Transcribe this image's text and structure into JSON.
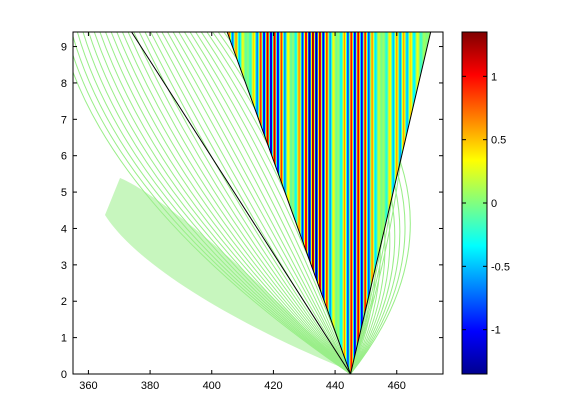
{
  "chart_data": {
    "type": "heatmap",
    "title": "",
    "xlabel": "",
    "ylabel": "",
    "xlim": [
      355,
      475
    ],
    "ylim": [
      0,
      9.4
    ],
    "x_ticks": [
      "360",
      "380",
      "400",
      "420",
      "440",
      "460"
    ],
    "x_tick_values": [
      360,
      380,
      400,
      420,
      440,
      460
    ],
    "y_ticks": [
      "0",
      "1",
      "2",
      "3",
      "4",
      "5",
      "6",
      "7",
      "8",
      "9"
    ],
    "y_tick_values": [
      0,
      1,
      2,
      3,
      4,
      5,
      6,
      7,
      8,
      9
    ],
    "grid": false,
    "colormap": "jet",
    "background_contour_color": "#99ee88",
    "colorbar": {
      "range": [
        -1.35,
        1.35
      ],
      "ticks": [
        "-1",
        "-0.5",
        "0",
        "0.5",
        "1"
      ],
      "tick_values": [
        -1,
        -0.5,
        0,
        0.5,
        1
      ]
    },
    "apex": {
      "x": 445,
      "y": 0
    },
    "boundary_lines": [
      {
        "from": [
          445,
          0
        ],
        "to": [
          374,
          9.4
        ]
      },
      {
        "from": [
          445,
          0
        ],
        "to": [
          405,
          9.4
        ]
      },
      {
        "from": [
          445,
          0
        ],
        "to": [
          471,
          9.4
        ]
      }
    ]
  }
}
